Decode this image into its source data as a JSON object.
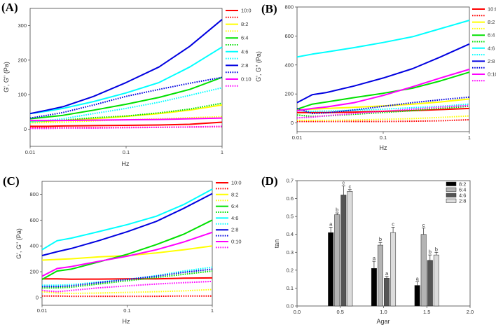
{
  "chart_data": [
    {
      "panel": "(A)",
      "type": "line",
      "xscale": "log",
      "xlabel": "Hz",
      "ylabel": "G', G'' (Pa)",
      "xlim": [
        0.01,
        1
      ],
      "ylim": [
        -50,
        350
      ],
      "xticks": [
        0.01,
        0.1,
        1
      ],
      "xtick_labels": [
        "0.01",
        "0.1",
        "1"
      ],
      "yticks": [
        0,
        100,
        200,
        300
      ],
      "ytick_labels": [
        "0",
        "100",
        "200",
        "300"
      ],
      "x": [
        0.01,
        0.015,
        0.022,
        0.046,
        0.1,
        0.22,
        0.46,
        1
      ],
      "series": [
        {
          "name": "10:0",
          "color": "#ff0000",
          "solid": [
            8,
            8,
            9,
            10,
            11,
            12,
            14,
            20
          ],
          "dotted": [
            4,
            4,
            4,
            4,
            5,
            5,
            6,
            7
          ]
        },
        {
          "name": "8:2",
          "color": "#ffff00",
          "solid": [
            22,
            23,
            25,
            30,
            37,
            45,
            55,
            70
          ],
          "dotted": [
            18,
            19,
            20,
            24,
            27,
            30,
            33,
            36
          ]
        },
        {
          "name": "6:4",
          "color": "#00e000",
          "solid": [
            30,
            35,
            40,
            55,
            72,
            92,
            115,
            150
          ],
          "dotted": [
            22,
            24,
            26,
            33,
            38,
            47,
            58,
            75
          ]
        },
        {
          "name": "4:6",
          "color": "#00ffff",
          "solid": [
            45,
            52,
            60,
            80,
            105,
            135,
            180,
            238
          ],
          "dotted": [
            20,
            25,
            30,
            45,
            60,
            78,
            98,
            120
          ]
        },
        {
          "name": "2:8",
          "color": "#0000e0",
          "solid": [
            45,
            55,
            65,
            95,
            135,
            180,
            240,
            318
          ],
          "dotted": [
            32,
            40,
            48,
            70,
            95,
            115,
            133,
            150
          ]
        },
        {
          "name": "0:10",
          "color": "#ff00ff",
          "solid": [
            25,
            25,
            25,
            26,
            27,
            28,
            30,
            32
          ],
          "dotted": [
            2,
            2,
            3,
            3,
            4,
            5,
            6,
            8
          ]
        }
      ]
    },
    {
      "panel": "(B)",
      "type": "line",
      "xscale": "log",
      "xlabel": "Hz",
      "ylabel": "G', G'' (Pa)",
      "xlim": [
        0.01,
        1
      ],
      "ylim": [
        -60,
        800
      ],
      "xticks": [
        0.01,
        0.1,
        1
      ],
      "xtick_labels": [
        "0.01",
        "0.1",
        "1"
      ],
      "yticks": [
        0,
        200,
        400,
        600,
        800
      ],
      "ytick_labels": [
        "0",
        "200",
        "400",
        "600",
        "800"
      ],
      "x": [
        0.01,
        0.015,
        0.022,
        0.046,
        0.1,
        0.22,
        0.46,
        1
      ],
      "series": [
        {
          "name": "10:0",
          "color": "#ff0000",
          "solid": [
            72,
            72,
            72,
            75,
            80,
            85,
            92,
            100
          ],
          "dotted": [
            10,
            10,
            10,
            10,
            10,
            12,
            15,
            22
          ]
        },
        {
          "name": "8:2",
          "color": "#ffff00",
          "solid": [
            90,
            95,
            100,
            108,
            118,
            130,
            145,
            165
          ],
          "dotted": [
            18,
            18,
            18,
            20,
            25,
            30,
            38,
            48
          ]
        },
        {
          "name": "6:4",
          "color": "#00e000",
          "solid": [
            95,
            130,
            145,
            175,
            205,
            240,
            290,
            350
          ],
          "dotted": [
            55,
            45,
            48,
            60,
            72,
            85,
            100,
            115
          ]
        },
        {
          "name": "4:6",
          "color": "#00ffff",
          "solid": [
            455,
            475,
            490,
            520,
            555,
            595,
            650,
            708
          ],
          "dotted": [
            85,
            80,
            82,
            88,
            95,
            105,
            115,
            130
          ]
        },
        {
          "name": "2:8",
          "color": "#0000e0",
          "solid": [
            140,
            195,
            210,
            255,
            310,
            375,
            455,
            545
          ],
          "dotted": [
            100,
            65,
            70,
            90,
            115,
            140,
            160,
            178
          ]
        },
        {
          "name": "0:10",
          "color": "#ff00ff",
          "solid": [
            85,
            100,
            110,
            140,
            190,
            250,
            310,
            370
          ],
          "dotted": [
            35,
            40,
            50,
            65,
            80,
            95,
            110,
            120
          ]
        }
      ]
    },
    {
      "panel": "(C)",
      "type": "line",
      "xscale": "log",
      "xlabel": "Hz",
      "ylabel": "G', G'' (Pa)",
      "xlim": [
        0.01,
        1
      ],
      "ylim": [
        -60,
        900
      ],
      "xticks": [
        0.01,
        0.1,
        1
      ],
      "xtick_labels": [
        "0.01",
        "0.1",
        "1"
      ],
      "yticks": [
        0,
        200,
        400,
        600,
        800
      ],
      "ytick_labels": [
        "0",
        "200",
        "400",
        "600",
        "800"
      ],
      "x": [
        0.01,
        0.015,
        0.022,
        0.046,
        0.1,
        0.22,
        0.46,
        1
      ],
      "series": [
        {
          "name": "10:0",
          "color": "#ff0000",
          "solid": [
            145,
            145,
            142,
            143,
            145,
            145,
            150,
            152
          ],
          "dotted": [
            12,
            12,
            10,
            10,
            10,
            10,
            12,
            12
          ]
        },
        {
          "name": "8:2",
          "color": "#ffff00",
          "solid": [
            290,
            295,
            300,
            315,
            325,
            345,
            370,
            400
          ],
          "dotted": [
            45,
            35,
            32,
            35,
            40,
            45,
            52,
            62
          ]
        },
        {
          "name": "6:4",
          "color": "#00e000",
          "solid": [
            140,
            205,
            220,
            275,
            335,
            410,
            490,
            600
          ],
          "dotted": [
            75,
            75,
            80,
            105,
            130,
            155,
            180,
            205
          ]
        },
        {
          "name": "4:6",
          "color": "#00ffff",
          "solid": [
            370,
            440,
            460,
            510,
            565,
            630,
            720,
            840
          ],
          "dotted": [
            95,
            95,
            100,
            120,
            140,
            170,
            205,
            235
          ]
        },
        {
          "name": "2:8",
          "color": "#0000e0",
          "solid": [
            325,
            355,
            380,
            440,
            510,
            590,
            690,
            805
          ],
          "dotted": [
            85,
            85,
            90,
            115,
            140,
            165,
            195,
            220
          ]
        },
        {
          "name": "0:10",
          "color": "#ff00ff",
          "solid": [
            165,
            225,
            240,
            280,
            320,
            370,
            430,
            505
          ],
          "dotted": [
            55,
            45,
            55,
            75,
            90,
            105,
            115,
            125
          ]
        }
      ]
    },
    {
      "panel": "(D)",
      "type": "bar",
      "xlabel": "Agar",
      "ylabel": "tan",
      "xlim": [
        0,
        2
      ],
      "ylim": [
        0,
        0.7
      ],
      "xticks": [
        0,
        0.5,
        1,
        1.5,
        2
      ],
      "xtick_labels": [
        "0.0",
        "0.5",
        "1.0",
        "1.5",
        "2.0"
      ],
      "yticks": [
        0,
        0.1,
        0.2,
        0.3,
        0.4,
        0.5,
        0.6,
        0.7
      ],
      "ytick_labels": [
        "0.0",
        "0.1",
        "0.2",
        "0.3",
        "0.4",
        "0.5",
        "0.6",
        "0.7"
      ],
      "categories": [
        0.5,
        1.0,
        1.5
      ],
      "series": [
        {
          "name": "8:2",
          "color": "#000000",
          "values": [
            0.41,
            0.21,
            0.115
          ],
          "errors": [
            0.03,
            0.04,
            0.02
          ],
          "letters": [
            "a",
            "a",
            "a"
          ]
        },
        {
          "name": "6:4",
          "color": "#b4b4b4",
          "values": [
            0.51,
            0.34,
            0.4
          ],
          "errors": [
            0.01,
            0.015,
            0.035
          ],
          "letters": [
            "b",
            "b",
            "c"
          ]
        },
        {
          "name": "4:6",
          "color": "#555555",
          "values": [
            0.62,
            0.155,
            0.255
          ],
          "errors": [
            0.05,
            0.01,
            0.03
          ],
          "letters": [
            "c",
            "a",
            "b"
          ]
        },
        {
          "name": "2:8",
          "color": "#dcdcdc",
          "values": [
            0.64,
            0.41,
            0.285
          ],
          "errors": [
            0.01,
            0.03,
            0.015
          ],
          "letters": [
            "c",
            "c",
            "b"
          ]
        }
      ],
      "legend": "top-right"
    }
  ]
}
